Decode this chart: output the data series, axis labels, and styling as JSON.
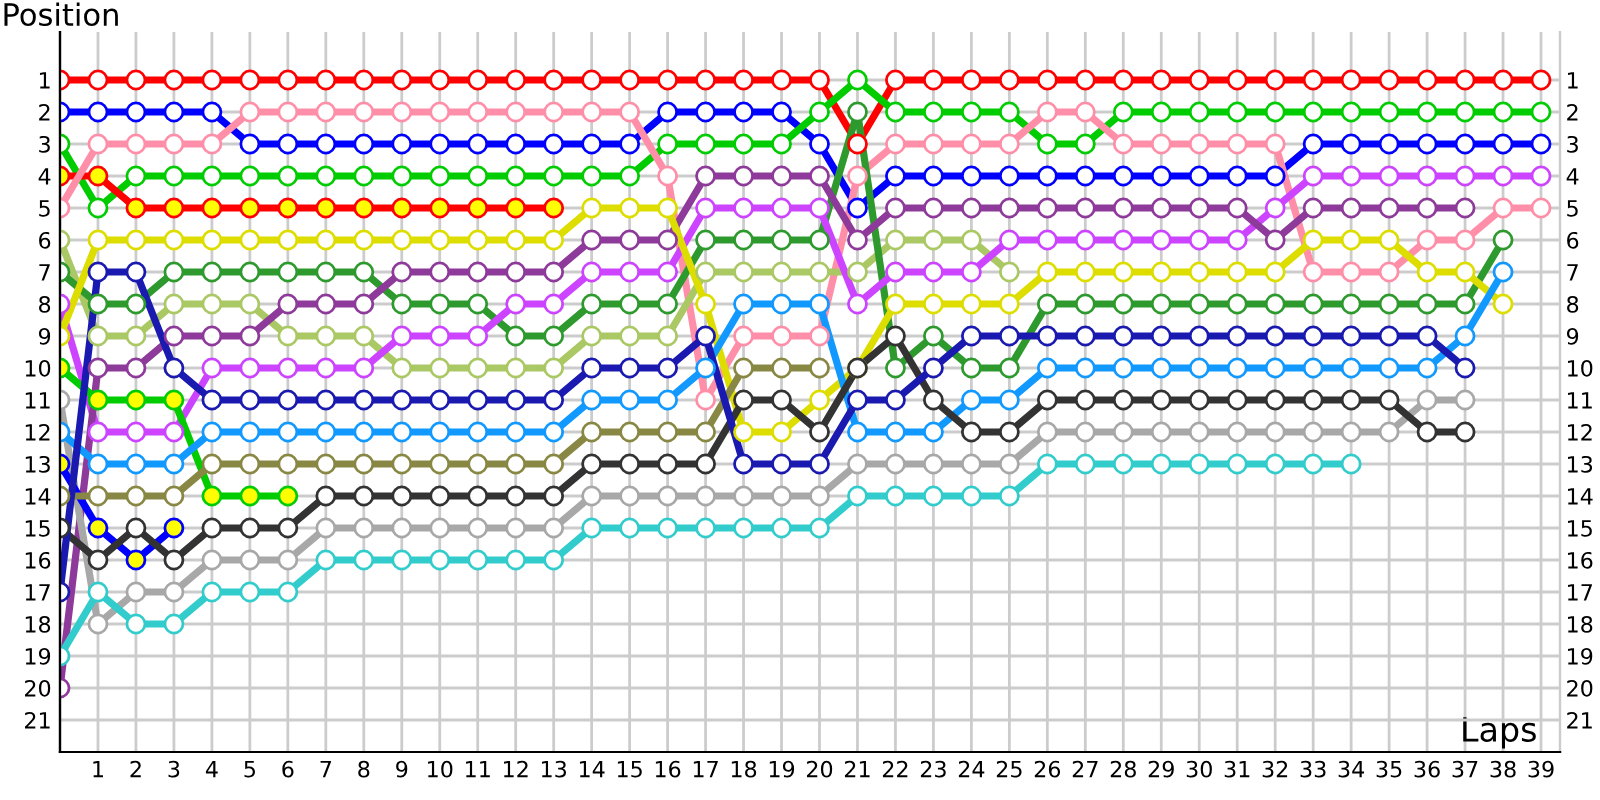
{
  "chart_data": {
    "type": "line",
    "xlabel": "Laps",
    "ylabel": "Position",
    "x": [
      0,
      1,
      2,
      3,
      4,
      5,
      6,
      7,
      8,
      9,
      10,
      11,
      12,
      13,
      14,
      15,
      16,
      17,
      18,
      19,
      20,
      21,
      22,
      23,
      24,
      25,
      26,
      27,
      28,
      29,
      30,
      31,
      32,
      33,
      34,
      35,
      36,
      37,
      38,
      39
    ],
    "xlim": [
      0,
      39.5
    ],
    "xticks": [
      1,
      2,
      3,
      4,
      5,
      6,
      7,
      8,
      9,
      10,
      11,
      12,
      13,
      14,
      15,
      16,
      17,
      18,
      19,
      20,
      21,
      22,
      23,
      24,
      25,
      26,
      27,
      28,
      29,
      30,
      31,
      32,
      33,
      34,
      35,
      36,
      37,
      38,
      39
    ],
    "ylim": [
      22,
      -0.5
    ],
    "yticks": [
      1,
      2,
      3,
      4,
      5,
      6,
      7,
      8,
      9,
      10,
      11,
      12,
      13,
      14,
      15,
      16,
      17,
      18,
      19,
      20,
      21
    ],
    "y2lim": [
      22,
      -0.5
    ],
    "y2ticks": [
      1,
      2,
      3,
      4,
      5,
      6,
      7,
      8,
      9,
      10,
      11,
      12,
      13,
      14,
      15,
      16,
      17,
      18,
      19,
      20,
      21
    ],
    "grid": true,
    "marker": "circle",
    "line_style": "solid",
    "series": [
      {
        "color": "#ff0000",
        "values": [
          1,
          1,
          1,
          1,
          1,
          1,
          1,
          1,
          1,
          1,
          1,
          1,
          1,
          1,
          1,
          1,
          1,
          1,
          1,
          1,
          1,
          3,
          1,
          1,
          1,
          1,
          1,
          1,
          1,
          1,
          1,
          1,
          1,
          1,
          1,
          1,
          1,
          1,
          1,
          1
        ]
      },
      {
        "color": "#0000ff",
        "values": [
          2,
          2,
          2,
          2,
          2,
          3,
          3,
          3,
          3,
          3,
          3,
          3,
          3,
          3,
          3,
          3,
          2,
          2,
          2,
          2,
          3,
          5,
          4,
          4,
          4,
          4,
          4,
          4,
          4,
          4,
          4,
          4,
          4,
          3,
          3,
          3,
          3,
          3,
          3,
          3
        ]
      },
      {
        "color": "#00cc00",
        "values": [
          3,
          5,
          4,
          4,
          4,
          4,
          4,
          4,
          4,
          4,
          4,
          4,
          4,
          4,
          4,
          4,
          3,
          3,
          3,
          3,
          2,
          1,
          2,
          2,
          2,
          2,
          3,
          3,
          2,
          2,
          2,
          2,
          2,
          2,
          2,
          2,
          2,
          2,
          2,
          2
        ]
      },
      {
        "color": "#ff0000",
        "values": [
          4,
          4,
          5,
          5,
          5,
          5,
          5,
          5,
          5,
          5,
          5,
          5,
          5,
          5,
          null,
          null,
          null,
          null,
          null,
          null,
          null,
          null,
          null,
          null,
          null,
          null,
          null,
          null,
          null,
          null,
          null,
          null,
          null,
          null,
          null,
          null,
          null,
          null,
          null,
          null
        ],
        "colors": [
          "#ffff00",
          "#ffff00",
          "#ffff00",
          "#ffff00",
          "#ffff00",
          "#ffff00",
          "#ffff00",
          "#ffff00",
          "#ffff00",
          "#ffff00",
          "#ffff00",
          "#ffff00",
          "#ffff00",
          "#ffff00",
          null,
          null,
          null,
          null,
          null,
          null,
          null,
          null,
          null,
          null,
          null,
          null,
          null,
          null,
          null,
          null,
          null,
          null,
          null,
          null,
          null,
          null,
          null,
          null,
          null,
          null
        ]
      },
      {
        "color": "#ff8fa8",
        "values": [
          5,
          3,
          3,
          3,
          3,
          2,
          2,
          2,
          2,
          2,
          2,
          2,
          2,
          2,
          2,
          2,
          4,
          11,
          9,
          9,
          9,
          4,
          3,
          3,
          3,
          3,
          2,
          2,
          3,
          3,
          3,
          3,
          3,
          7,
          7,
          7,
          6,
          6,
          5,
          5
        ]
      },
      {
        "color": "#aac864",
        "values": [
          6,
          9,
          9,
          8,
          8,
          8,
          9,
          9,
          9,
          10,
          10,
          10,
          10,
          10,
          9,
          9,
          9,
          7,
          7,
          7,
          7,
          7,
          6,
          6,
          6,
          7,
          null,
          null,
          null,
          null,
          null,
          null,
          null,
          null,
          null,
          null,
          null,
          null,
          null,
          null
        ]
      },
      {
        "color": "#2e9a2e",
        "values": [
          7,
          8,
          8,
          7,
          7,
          7,
          7,
          7,
          7,
          8,
          8,
          8,
          9,
          9,
          8,
          8,
          8,
          6,
          6,
          6,
          6,
          2,
          10,
          9,
          10,
          10,
          8,
          8,
          8,
          8,
          8,
          8,
          8,
          8,
          8,
          8,
          8,
          8,
          6,
          null
        ]
      },
      {
        "color": "#cc44ff",
        "values": [
          8,
          12,
          12,
          12,
          10,
          10,
          10,
          10,
          10,
          9,
          9,
          9,
          8,
          8,
          7,
          7,
          7,
          5,
          5,
          5,
          5,
          8,
          7,
          7,
          7,
          6,
          6,
          6,
          6,
          6,
          6,
          6,
          5,
          4,
          4,
          4,
          4,
          4,
          4,
          4
        ]
      },
      {
        "color": "#8e3a9a",
        "values": [
          20,
          10,
          10,
          9,
          9,
          9,
          8,
          8,
          8,
          7,
          7,
          7,
          7,
          7,
          6,
          6,
          6,
          4,
          4,
          4,
          4,
          6,
          5,
          5,
          5,
          5,
          5,
          5,
          5,
          5,
          5,
          5,
          6,
          5,
          5,
          5,
          5,
          5,
          null,
          null
        ]
      },
      {
        "color": "#dddd00",
        "values": [
          9,
          6,
          6,
          6,
          6,
          6,
          6,
          6,
          6,
          6,
          6,
          6,
          6,
          6,
          5,
          5,
          5,
          8,
          12,
          12,
          11,
          10,
          8,
          8,
          8,
          8,
          7,
          7,
          7,
          7,
          7,
          7,
          7,
          6,
          6,
          6,
          7,
          7,
          8,
          null
        ]
      },
      {
        "color": "#00cc00",
        "values": [
          10,
          11,
          11,
          11,
          14,
          14,
          14,
          null,
          null,
          null,
          null,
          null,
          null,
          null,
          null,
          null,
          null,
          null,
          null,
          null,
          null,
          null,
          null,
          null,
          null,
          null,
          null,
          null,
          null,
          null,
          null,
          null,
          null,
          null,
          null,
          null,
          null,
          null,
          null,
          null
        ],
        "colors": [
          "#ffff00",
          "#ffff00",
          "#ffff00",
          "#ffff00",
          "#ffff00",
          "#ffff00",
          "#ffff00",
          null,
          null,
          null,
          null,
          null,
          null,
          null,
          null,
          null,
          null,
          null,
          null,
          null,
          null,
          null,
          null,
          null,
          null,
          null,
          null,
          null,
          null,
          null,
          null,
          null,
          null,
          null,
          null,
          null,
          null,
          null,
          null,
          null
        ]
      },
      {
        "color": "#a8a8a8",
        "values": [
          11,
          18,
          17,
          17,
          16,
          16,
          16,
          15,
          15,
          15,
          15,
          15,
          15,
          15,
          14,
          14,
          14,
          14,
          14,
          14,
          14,
          13,
          13,
          13,
          13,
          13,
          12,
          12,
          12,
          12,
          12,
          12,
          12,
          12,
          12,
          12,
          11,
          11,
          null,
          null
        ]
      },
      {
        "color": "#1199ff",
        "values": [
          12,
          13,
          13,
          13,
          12,
          12,
          12,
          12,
          12,
          12,
          12,
          12,
          12,
          12,
          11,
          11,
          11,
          10,
          8,
          8,
          8,
          12,
          12,
          12,
          11,
          11,
          10,
          10,
          10,
          10,
          10,
          10,
          10,
          10,
          10,
          10,
          10,
          9,
          7,
          null
        ]
      },
      {
        "color": "#0000ff",
        "values": [
          13,
          15,
          16,
          15,
          null,
          null,
          null,
          null,
          null,
          null,
          null,
          null,
          null,
          null,
          null,
          null,
          null,
          null,
          null,
          null,
          null,
          null,
          null,
          null,
          null,
          null,
          null,
          null,
          null,
          null,
          null,
          null,
          null,
          null,
          null,
          null,
          null,
          null,
          null,
          null
        ],
        "colors": [
          "#ffff00",
          "#ffff00",
          "#ffff00",
          "#ffff00",
          null,
          null,
          null,
          null,
          null,
          null,
          null,
          null,
          null,
          null,
          null,
          null,
          null,
          null,
          null,
          null,
          null,
          null,
          null,
          null,
          null,
          null,
          null,
          null,
          null,
          null,
          null,
          null,
          null,
          null,
          null,
          null,
          null,
          null,
          null,
          null
        ]
      },
      {
        "color": "#888844",
        "values": [
          14,
          14,
          14,
          14,
          13,
          13,
          13,
          13,
          13,
          13,
          13,
          13,
          13,
          13,
          12,
          12,
          12,
          12,
          10,
          10,
          10,
          null,
          null,
          null,
          null,
          null,
          null,
          null,
          null,
          null,
          null,
          null,
          null,
          null,
          null,
          null,
          null,
          null,
          null,
          null
        ]
      },
      {
        "color": "#333333",
        "values": [
          15,
          16,
          15,
          16,
          15,
          15,
          15,
          14,
          14,
          14,
          14,
          14,
          14,
          14,
          13,
          13,
          13,
          13,
          11,
          11,
          12,
          10,
          9,
          11,
          12,
          12,
          11,
          11,
          11,
          11,
          11,
          11,
          11,
          11,
          11,
          11,
          12,
          12,
          null,
          null
        ]
      },
      {
        "color": "#1a1ab0",
        "values": [
          17,
          7,
          7,
          10,
          11,
          11,
          11,
          11,
          11,
          11,
          11,
          11,
          11,
          11,
          10,
          10,
          10,
          9,
          13,
          13,
          13,
          11,
          11,
          10,
          9,
          9,
          9,
          9,
          9,
          9,
          9,
          9,
          9,
          9,
          9,
          9,
          9,
          10,
          null,
          null
        ]
      },
      {
        "color": "#33cccc",
        "values": [
          19,
          17,
          18,
          18,
          17,
          17,
          17,
          16,
          16,
          16,
          16,
          16,
          16,
          16,
          15,
          15,
          15,
          15,
          15,
          15,
          15,
          14,
          14,
          14,
          14,
          14,
          13,
          13,
          13,
          13,
          13,
          13,
          13,
          13,
          13,
          null,
          null,
          null,
          null,
          null
        ]
      }
    ]
  }
}
